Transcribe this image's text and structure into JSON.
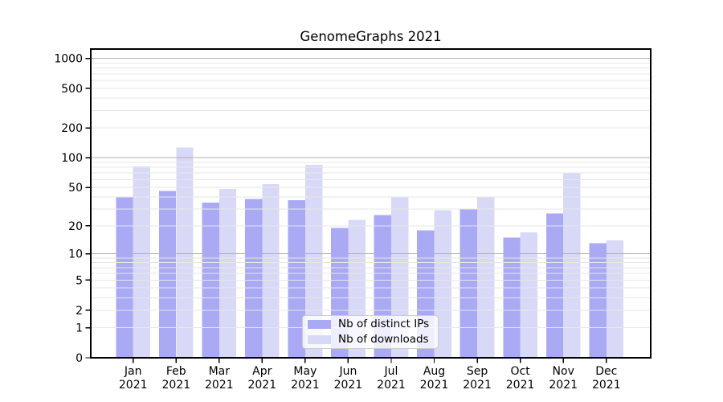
{
  "chart_data": {
    "type": "bar",
    "title": "GenomeGraphs 2021",
    "categories": [
      "Jan",
      "Feb",
      "Mar",
      "Apr",
      "May",
      "Jun",
      "Jul",
      "Aug",
      "Sep",
      "Oct",
      "Nov",
      "Dec"
    ],
    "category_year": "2021",
    "series": [
      {
        "name": "Nb of distinct IPs",
        "color": "#a9a9f4",
        "values": [
          40,
          46,
          35,
          38,
          37,
          19,
          26,
          18,
          30,
          15,
          27,
          13
        ]
      },
      {
        "name": "Nb of downloads",
        "color": "#d8d8f7",
        "values": [
          82,
          127,
          48,
          54,
          85,
          23,
          40,
          29,
          40,
          17,
          70,
          14
        ]
      }
    ],
    "xlabel": "",
    "ylabel": "",
    "y_scale": "log1p",
    "y_ticks": [
      0,
      1,
      2,
      5,
      10,
      20,
      50,
      100,
      200,
      500,
      1000
    ],
    "ylim": [
      0,
      1240
    ],
    "grid": "on",
    "legend_position": "lower center"
  },
  "colors": {
    "major_grid": "#b0b0b0",
    "minor_grid": "#e7e7e7",
    "spine": "#000000",
    "legend_border": "#cccccc"
  }
}
